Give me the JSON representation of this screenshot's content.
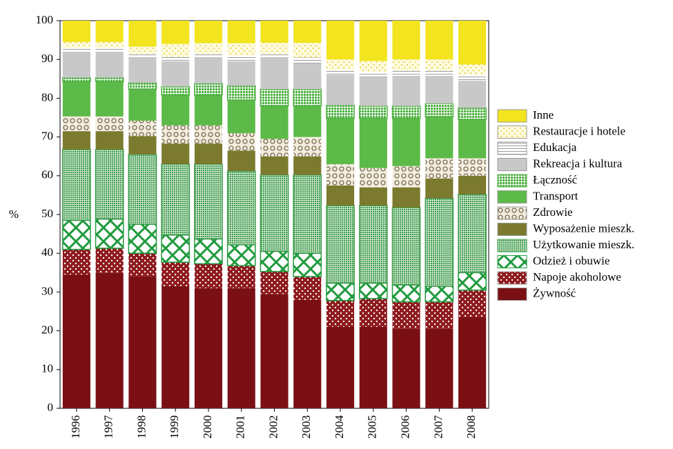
{
  "chart_data": {
    "type": "stacked_bar",
    "y_label": "%",
    "categories": [
      "1996",
      "1997",
      "1998",
      "1999",
      "2000",
      "2001",
      "2002",
      "2003",
      "2004",
      "2005",
      "2006",
      "2007",
      "2008"
    ],
    "ylim": [
      0,
      100
    ],
    "yticks": [
      0,
      10,
      20,
      30,
      40,
      50,
      60,
      70,
      80,
      90,
      100
    ],
    "series": [
      {
        "name": "Żywność",
        "color": "#7a1014",
        "values": [
          34.5,
          35,
          34,
          31.5,
          31,
          31,
          29.5,
          28,
          21,
          21,
          20.5,
          20.5,
          23.5
        ]
      },
      {
        "name": "Napoje akoholowe",
        "color": "#8e1a1e",
        "values": [
          6.5,
          6.3,
          6.0,
          6.2,
          6.3,
          5.8,
          5.8,
          6.0,
          6.8,
          7.3,
          7.0,
          7.0,
          7.0
        ]
      },
      {
        "name": "Odzież i obuwie",
        "color": "#1f9a3c",
        "values": [
          7.5,
          7.5,
          7.5,
          7.0,
          6.4,
          5.4,
          5.2,
          6.0,
          4.5,
          4.0,
          4.3,
          4.0,
          4.5
        ]
      },
      {
        "name": "Użytkowanie mieszk.",
        "color": "#3a9a4a",
        "values": [
          18.3,
          18.0,
          18.0,
          18.3,
          19.3,
          19.0,
          19.7,
          20.2,
          20.0,
          20.0,
          20.0,
          22.7,
          20.2
        ]
      },
      {
        "name": "Wyposażenie mieszk.",
        "color": "#7b7a2e",
        "values": [
          4.7,
          4.7,
          4.7,
          5.3,
          5.3,
          5.3,
          4.8,
          4.8,
          5.2,
          4.7,
          5.2,
          5.1,
          4.8
        ]
      },
      {
        "name": "Zdrowie",
        "color": "#c9b88e",
        "values": [
          3.8,
          3.8,
          4.0,
          4.7,
          4.7,
          4.5,
          4.5,
          5.0,
          5.5,
          5.0,
          5.5,
          5.2,
          4.5
        ]
      },
      {
        "name": "Transport",
        "color": "#5cba48",
        "values": [
          9.0,
          9.0,
          8.1,
          7.8,
          7.8,
          8.5,
          8.5,
          8.0,
          11.8,
          12.8,
          12.3,
          10.7,
          10.0
        ]
      },
      {
        "name": "Łączność",
        "color": "#4cb040",
        "values": [
          1.0,
          1.0,
          1.7,
          2.2,
          3.0,
          3.7,
          4.3,
          4.3,
          3.4,
          3.2,
          3.2,
          3.4,
          3.0
        ]
      },
      {
        "name": "Rekreacja i kultura",
        "color": "#c8c8c8",
        "values": [
          6.7,
          6.7,
          6.5,
          6.5,
          6.7,
          6.3,
          8.2,
          6.7,
          7.8,
          7.5,
          7.8,
          7.2,
          7.0
        ]
      },
      {
        "name": "Edukacja",
        "color": "#9a9a9a",
        "values": [
          1.0,
          1.0,
          1.0,
          1.2,
          1.0,
          1.5,
          1.0,
          1.5,
          1.3,
          1.3,
          1.4,
          1.4,
          1.5
        ]
      },
      {
        "name": "Restauracje i hotele",
        "color": "#e8dc6a",
        "values": [
          1.5,
          1.5,
          1.8,
          3.3,
          2.7,
          3.2,
          2.8,
          3.8,
          2.7,
          2.8,
          2.8,
          2.8,
          2.7
        ]
      },
      {
        "name": "Inne",
        "color": "#f2e41e",
        "values": [
          5.5,
          5.5,
          6.7,
          6.0,
          5.8,
          5.8,
          5.7,
          5.7,
          10.0,
          10.4,
          10.0,
          10.0,
          11.3
        ]
      }
    ]
  }
}
